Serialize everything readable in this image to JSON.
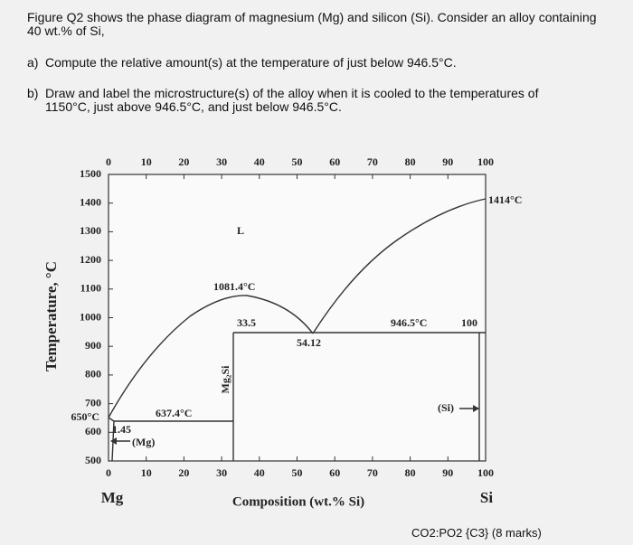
{
  "question": {
    "intro": "Figure Q2 shows the phase diagram of magnesium (Mg) and silicon (Si). Consider an alloy containing 40 wt.% of Si,",
    "parts": [
      {
        "label": "a)",
        "text": "Compute the relative amount(s) at the temperature of just below 946.5°C."
      },
      {
        "label": "b)",
        "text": "Draw and label the microstructure(s) of the alloy when it is cooled to the temperatures of 1150°C, just above 946.5°C, and just below 946.5°C."
      }
    ]
  },
  "figure": {
    "y_axis_title": "Temperature, °C",
    "x_axis_title": "Composition (wt.% Si)",
    "left_end": "Mg",
    "right_end": "Si",
    "x_tick_labels": [
      "0",
      "10",
      "20",
      "30",
      "40",
      "50",
      "60",
      "70",
      "80",
      "90",
      "100"
    ],
    "y_tick_labels": [
      "1500",
      "1400",
      "1300",
      "1200",
      "1100",
      "1000",
      "900",
      "800",
      "700",
      "600",
      "500"
    ],
    "annotations": {
      "liquid": "L",
      "peak": "1081.4°C",
      "left_eutectic_comp": "33.5",
      "eutectic_comp": "54.12",
      "eutectic_temp": "946.5°C",
      "right_eutectic_comp": "100",
      "si_phase": "(Si)",
      "low_eutectic_temp": "637.4°C",
      "mg_solubility": "1.45",
      "mg_phase": "(Mg)",
      "compound": "Mg₂Si",
      "si_melting": "1414°C",
      "mg_melting": "650°C"
    }
  },
  "footer": "CO2:PO2 {C3} (8 marks)"
}
